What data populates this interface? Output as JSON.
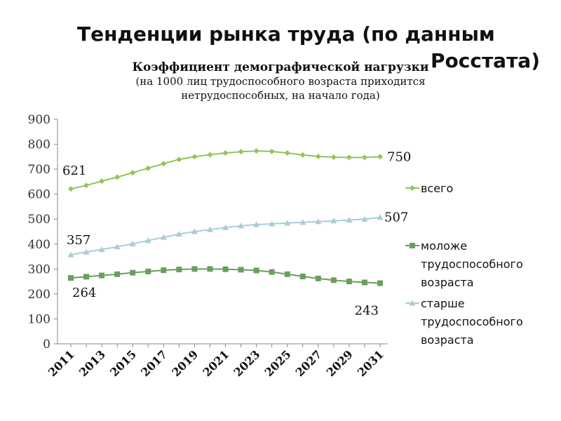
{
  "slide": {
    "title_line1": "Тенденции рынка труда (по данным",
    "title_line2": "Росстата)"
  },
  "chart_data": {
    "type": "line",
    "title": "Коэффициент демографической нагрузки",
    "subtitle_line1": "(на 1000 лиц трудоспособного возраста приходится",
    "subtitle_line2": "нетрудоспособных, на начало года)",
    "x": [
      2011,
      2012,
      2013,
      2014,
      2015,
      2016,
      2017,
      2018,
      2019,
      2020,
      2021,
      2022,
      2023,
      2024,
      2025,
      2026,
      2027,
      2028,
      2029,
      2030,
      2031
    ],
    "x_tick_labels": [
      "2011",
      "2013",
      "2015",
      "2017",
      "2019",
      "2021",
      "2023",
      "2025",
      "2027",
      "2029",
      "2031"
    ],
    "y_ticks": [
      0,
      100,
      200,
      300,
      400,
      500,
      600,
      700,
      800,
      900
    ],
    "ylim": [
      0,
      900
    ],
    "grid": false,
    "legend_position": "right",
    "series": [
      {
        "name": "всего",
        "color": "#92c45a",
        "marker": "diamond",
        "values": [
          621,
          635,
          652,
          668,
          686,
          704,
          722,
          739,
          750,
          758,
          765,
          770,
          773,
          771,
          765,
          757,
          751,
          748,
          747,
          747,
          750
        ],
        "start_label": "621",
        "end_label": "750"
      },
      {
        "name": "моложе трудоспособного возраста",
        "legend_lines": [
          "моложе",
          "трудоспособного",
          "возраста"
        ],
        "color": "#6a9e5e",
        "marker": "square",
        "values": [
          264,
          269,
          274,
          279,
          285,
          290,
          295,
          298,
          300,
          300,
          299,
          297,
          294,
          288,
          279,
          270,
          262,
          255,
          250,
          246,
          243
        ],
        "start_label": "264",
        "end_label": "243"
      },
      {
        "name": "старше трудоспособного возраста",
        "legend_lines": [
          "старше",
          "трудоспособного",
          "возраста"
        ],
        "color": "#a8cdd6",
        "marker": "triangle",
        "values": [
          357,
          368,
          378,
          389,
          401,
          414,
          427,
          440,
          450,
          458,
          466,
          473,
          478,
          481,
          484,
          487,
          490,
          493,
          496,
          500,
          507
        ],
        "start_label": "357",
        "end_label": "507"
      }
    ]
  }
}
